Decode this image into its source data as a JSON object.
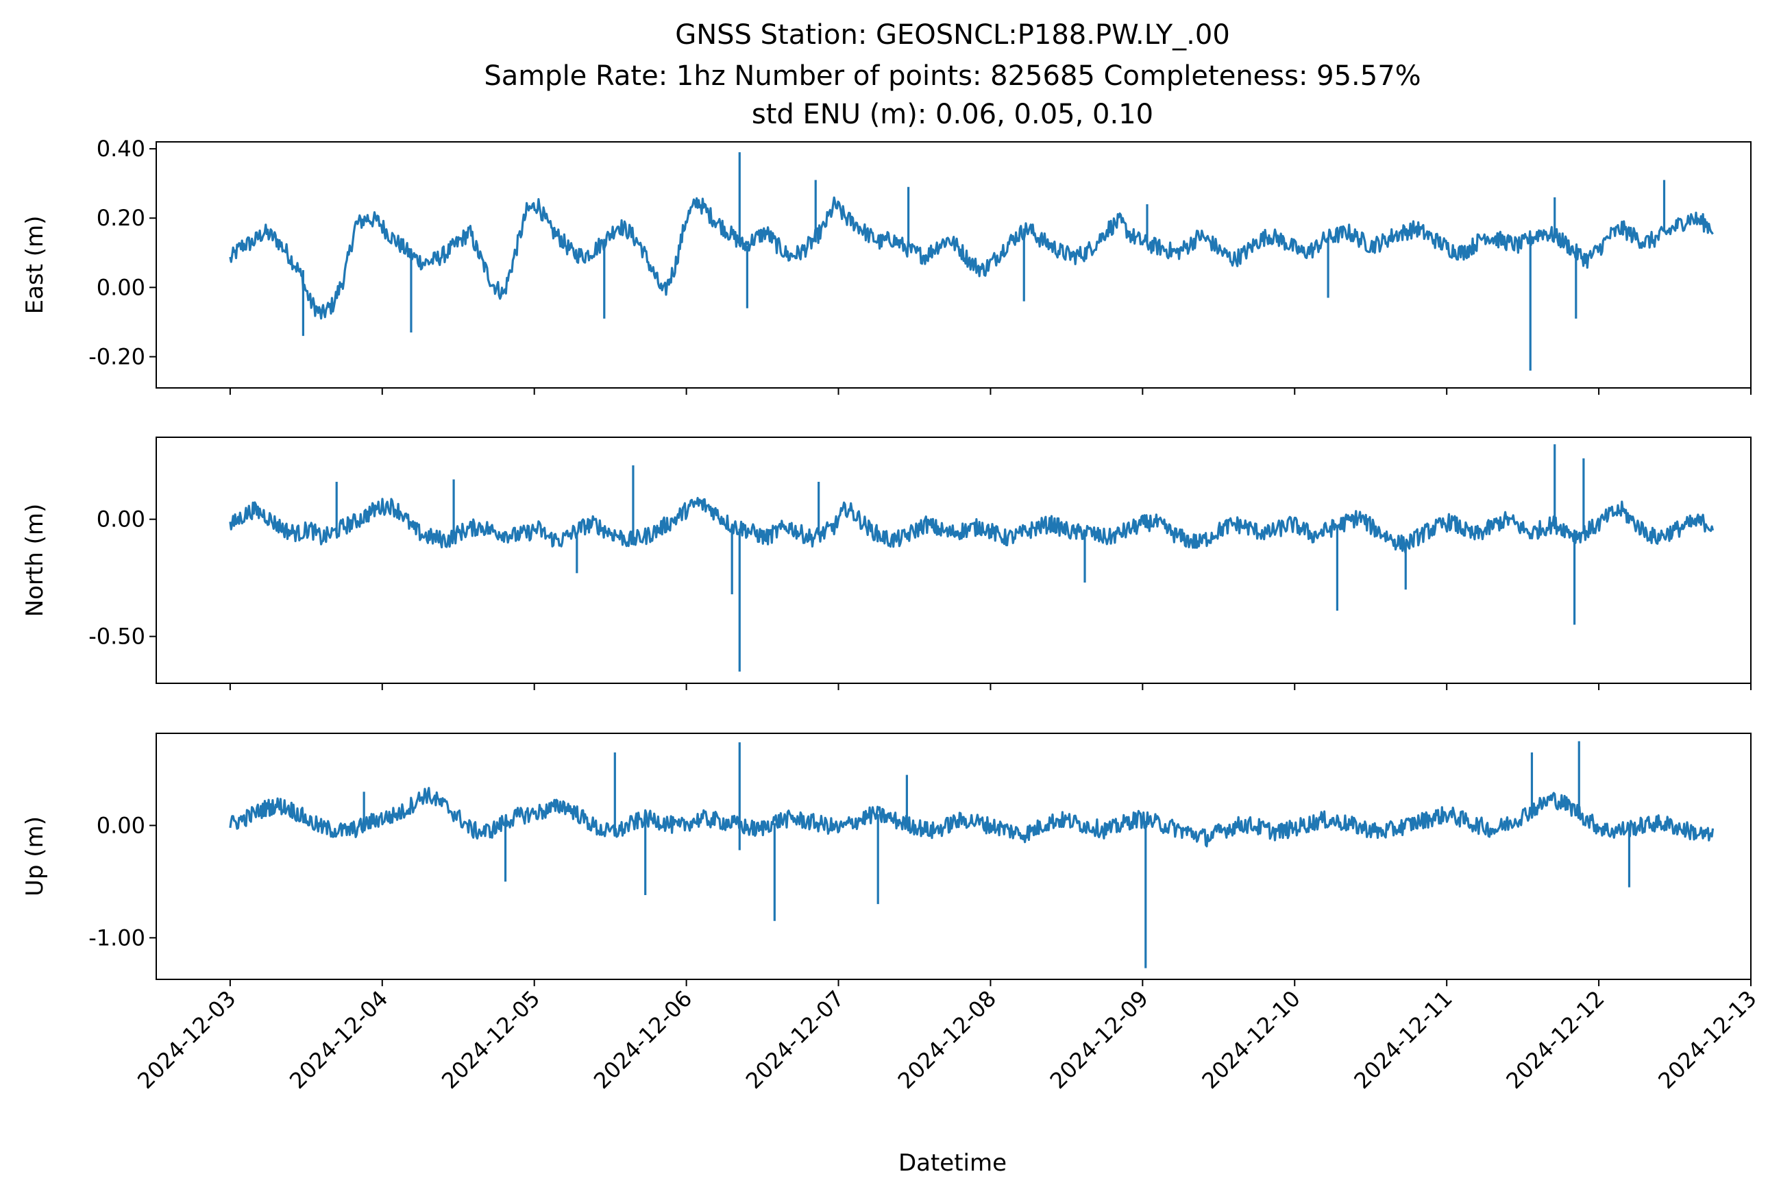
{
  "figure": {
    "title_lines": [
      "GNSS Station: GEOSNCL:P188.PW.LY_.00",
      "Sample Rate: 1hz   Number of points: 825685    Completeness:  95.57%",
      "std ENU (m):  0.06, 0.05, 0.10"
    ],
    "xlabel": "Datetime",
    "line_color": "#1f77b4"
  },
  "chart_data": {
    "type": "line",
    "shared_x": true,
    "x_ticks": [
      "2024-12-03",
      "2024-12-04",
      "2024-12-05",
      "2024-12-06",
      "2024-12-07",
      "2024-12-08",
      "2024-12-09",
      "2024-12-10",
      "2024-12-11",
      "2024-12-12",
      "2024-12-13"
    ],
    "x_range": [
      "2024-12-02T12:20",
      "2024-12-13T00:00"
    ],
    "data_range": [
      "2024-12-03T00:00",
      "2024-12-12T18:00"
    ],
    "panels": [
      {
        "ylabel": "East (m)",
        "ylim": [
          -0.29,
          0.42
        ],
        "y_ticks": [
          0.4,
          0.2,
          0.0,
          -0.2
        ],
        "y_tick_labels": [
          "0.40",
          "0.20",
          "0.00",
          "-0.20"
        ],
        "values": [
          0.08,
          0.12,
          0.13,
          0.16,
          0.14,
          0.1,
          0.05,
          -0.04,
          -0.08,
          -0.05,
          0.03,
          0.18,
          0.2,
          0.19,
          0.15,
          0.12,
          0.09,
          0.07,
          0.08,
          0.1,
          0.13,
          0.16,
          0.08,
          0.01,
          -0.02,
          0.1,
          0.22,
          0.24,
          0.17,
          0.14,
          0.1,
          0.09,
          0.11,
          0.14,
          0.18,
          0.16,
          0.12,
          0.05,
          -0.02,
          0.06,
          0.2,
          0.25,
          0.21,
          0.18,
          0.15,
          0.12,
          0.14,
          0.16,
          0.12,
          0.09,
          0.1,
          0.13,
          0.17,
          0.24,
          0.2,
          0.18,
          0.15,
          0.13,
          0.14,
          0.12,
          0.1,
          0.09,
          0.12,
          0.14,
          0.11,
          0.07,
          0.05,
          0.08,
          0.12,
          0.15,
          0.17,
          0.14,
          0.12,
          0.1,
          0.09,
          0.1,
          0.13,
          0.17,
          0.19,
          0.15,
          0.13,
          0.12,
          0.11,
          0.1,
          0.12,
          0.15,
          0.13,
          0.1,
          0.08,
          0.1,
          0.13,
          0.15,
          0.14,
          0.12,
          0.1,
          0.11,
          0.14,
          0.15,
          0.16,
          0.14,
          0.12,
          0.13,
          0.15,
          0.16,
          0.17,
          0.15,
          0.13,
          0.11,
          0.1,
          0.12,
          0.15,
          0.14,
          0.13,
          0.12,
          0.14,
          0.16,
          0.15,
          0.13,
          0.1,
          0.08,
          0.11,
          0.15,
          0.17,
          0.15,
          0.13,
          0.14,
          0.16,
          0.18,
          0.2,
          0.19,
          0.17
        ],
        "spikes": [
          [
            0.48,
            -0.14
          ],
          [
            1.19,
            -0.13
          ],
          [
            2.46,
            -0.09
          ],
          [
            3.35,
            0.39
          ],
          [
            3.4,
            -0.06
          ],
          [
            3.85,
            0.31
          ],
          [
            4.46,
            0.29
          ],
          [
            5.22,
            -0.04
          ],
          [
            6.03,
            0.24
          ],
          [
            7.22,
            -0.03
          ],
          [
            8.55,
            -0.24
          ],
          [
            8.71,
            0.26
          ],
          [
            8.85,
            -0.09
          ],
          [
            9.43,
            0.31
          ]
        ]
      },
      {
        "ylabel": "North (m)",
        "ylim": [
          -0.7,
          0.35
        ],
        "y_ticks": [
          0.0,
          -0.5
        ],
        "y_tick_labels": [
          "0.00",
          "-0.50"
        ],
        "values": [
          -0.03,
          0.01,
          0.04,
          0.02,
          -0.02,
          -0.05,
          -0.06,
          -0.04,
          -0.08,
          -0.06,
          -0.03,
          -0.01,
          0.02,
          0.05,
          0.06,
          0.03,
          -0.04,
          -0.07,
          -0.08,
          -0.09,
          -0.06,
          -0.04,
          -0.03,
          -0.05,
          -0.06,
          -0.07,
          -0.06,
          -0.04,
          -0.08,
          -0.09,
          -0.06,
          -0.03,
          -0.02,
          -0.05,
          -0.07,
          -0.09,
          -0.08,
          -0.06,
          -0.03,
          0.0,
          0.04,
          0.07,
          0.05,
          0.01,
          -0.03,
          -0.04,
          -0.06,
          -0.08,
          -0.05,
          -0.03,
          -0.06,
          -0.08,
          -0.06,
          -0.03,
          0.05,
          0.01,
          -0.04,
          -0.07,
          -0.09,
          -0.08,
          -0.05,
          -0.02,
          -0.04,
          -0.06,
          -0.05,
          -0.04,
          -0.03,
          -0.06,
          -0.08,
          -0.07,
          -0.05,
          -0.03,
          -0.02,
          -0.04,
          -0.06,
          -0.05,
          -0.07,
          -0.08,
          -0.06,
          -0.04,
          -0.02,
          -0.01,
          -0.04,
          -0.07,
          -0.09,
          -0.1,
          -0.07,
          -0.04,
          -0.02,
          -0.03,
          -0.05,
          -0.06,
          -0.04,
          -0.02,
          -0.04,
          -0.07,
          -0.05,
          -0.03,
          -0.01,
          0.01,
          -0.03,
          -0.06,
          -0.09,
          -0.11,
          -0.08,
          -0.05,
          -0.03,
          -0.01,
          -0.04,
          -0.07,
          -0.05,
          -0.02,
          0.0,
          -0.03,
          -0.06,
          -0.04,
          -0.02,
          -0.04,
          -0.07,
          -0.05,
          -0.02,
          0.02,
          0.04,
          -0.01,
          -0.05,
          -0.08,
          -0.06,
          -0.04,
          -0.02,
          -0.01,
          -0.03
        ],
        "spikes": [
          [
            0.7,
            0.16
          ],
          [
            1.47,
            0.17
          ],
          [
            2.28,
            -0.23
          ],
          [
            2.65,
            0.23
          ],
          [
            3.3,
            -0.32
          ],
          [
            3.35,
            -0.65
          ],
          [
            3.87,
            0.16
          ],
          [
            5.62,
            -0.27
          ],
          [
            7.28,
            -0.39
          ],
          [
            7.73,
            -0.3
          ],
          [
            8.71,
            0.32
          ],
          [
            8.84,
            -0.45
          ],
          [
            8.9,
            0.26
          ]
        ]
      },
      {
        "ylabel": "Up (m)",
        "ylim": [
          -1.37,
          0.82
        ],
        "y_ticks": [
          0.0,
          -1.0
        ],
        "y_tick_labels": [
          "0.00",
          "-1.00"
        ],
        "values": [
          0.01,
          0.05,
          0.1,
          0.15,
          0.18,
          0.16,
          0.1,
          0.03,
          -0.02,
          -0.04,
          -0.05,
          -0.03,
          0.02,
          0.06,
          0.08,
          0.12,
          0.2,
          0.28,
          0.22,
          0.15,
          0.06,
          -0.04,
          -0.06,
          -0.03,
          0.04,
          0.08,
          0.1,
          0.12,
          0.15,
          0.18,
          0.12,
          0.04,
          -0.03,
          -0.06,
          -0.04,
          0.02,
          0.06,
          0.05,
          0.02,
          -0.02,
          0.03,
          0.06,
          0.05,
          0.03,
          0.01,
          -0.02,
          -0.04,
          0.02,
          0.05,
          0.06,
          0.04,
          0.02,
          0.0,
          -0.03,
          0.02,
          0.06,
          0.1,
          0.08,
          0.04,
          0.01,
          -0.02,
          -0.05,
          -0.02,
          0.03,
          0.05,
          0.03,
          0.0,
          -0.02,
          -0.05,
          -0.08,
          -0.04,
          0.02,
          0.05,
          0.04,
          0.01,
          -0.01,
          -0.04,
          -0.02,
          0.03,
          0.06,
          0.04,
          0.01,
          -0.02,
          -0.05,
          -0.08,
          -0.11,
          -0.06,
          -0.02,
          0.01,
          0.0,
          -0.03,
          -0.06,
          -0.04,
          -0.01,
          0.02,
          0.05,
          0.04,
          0.02,
          -0.01,
          -0.03,
          -0.06,
          -0.04,
          -0.01,
          0.02,
          0.05,
          0.08,
          0.1,
          0.06,
          0.02,
          -0.01,
          -0.04,
          0.01,
          0.06,
          0.12,
          0.18,
          0.24,
          0.2,
          0.14,
          0.06,
          -0.01,
          -0.05,
          -0.04,
          -0.02,
          0.0,
          0.02,
          0.01,
          -0.02,
          -0.05,
          -0.08,
          -0.1
        ],
        "spikes": [
          [
            0.88,
            0.3
          ],
          [
            1.81,
            -0.5
          ],
          [
            2.53,
            0.65
          ],
          [
            2.73,
            -0.62
          ],
          [
            3.35,
            0.74
          ],
          [
            3.35,
            -0.22
          ],
          [
            3.58,
            -0.85
          ],
          [
            4.26,
            -0.7
          ],
          [
            4.45,
            0.45
          ],
          [
            6.02,
            -1.27
          ],
          [
            8.56,
            0.65
          ],
          [
            8.87,
            0.75
          ],
          [
            9.2,
            -0.55
          ]
        ]
      }
    ]
  }
}
